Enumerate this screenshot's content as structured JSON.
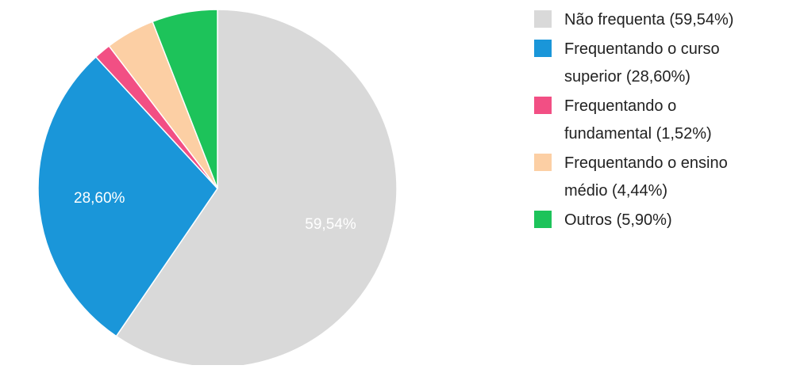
{
  "chart_data": {
    "type": "pie",
    "title": "",
    "slices": [
      {
        "label": "Não frequenta",
        "value": 59.54,
        "slice_label": "59,54%",
        "legend_lines": [
          "Não frequenta (59,54%)"
        ],
        "color": "#d9d9d9"
      },
      {
        "label": "Frequentando o curso superior",
        "value": 28.6,
        "slice_label": "28,60%",
        "legend_lines": [
          "Frequentando o curso",
          "superior (28,60%)"
        ],
        "color": "#1a96d9"
      },
      {
        "label": "Frequentando o fundamental",
        "value": 1.52,
        "slice_label": "",
        "legend_lines": [
          "Frequentando o",
          "fundamental (1,52%)"
        ],
        "color": "#f24f84"
      },
      {
        "label": "Frequentando o ensino médio",
        "value": 4.44,
        "slice_label": "",
        "legend_lines": [
          "Frequentando o ensino",
          "médio (4,44%)"
        ],
        "color": "#fccfa4"
      },
      {
        "label": "Outros",
        "value": 5.9,
        "slice_label": "",
        "legend_lines": [
          "Outros (5,90%)"
        ],
        "color": "#1dc35a"
      }
    ],
    "start_angle": "12 o'clock",
    "direction": "clockwise",
    "legend_position": "right",
    "slice_label_color": "#ffffff"
  }
}
